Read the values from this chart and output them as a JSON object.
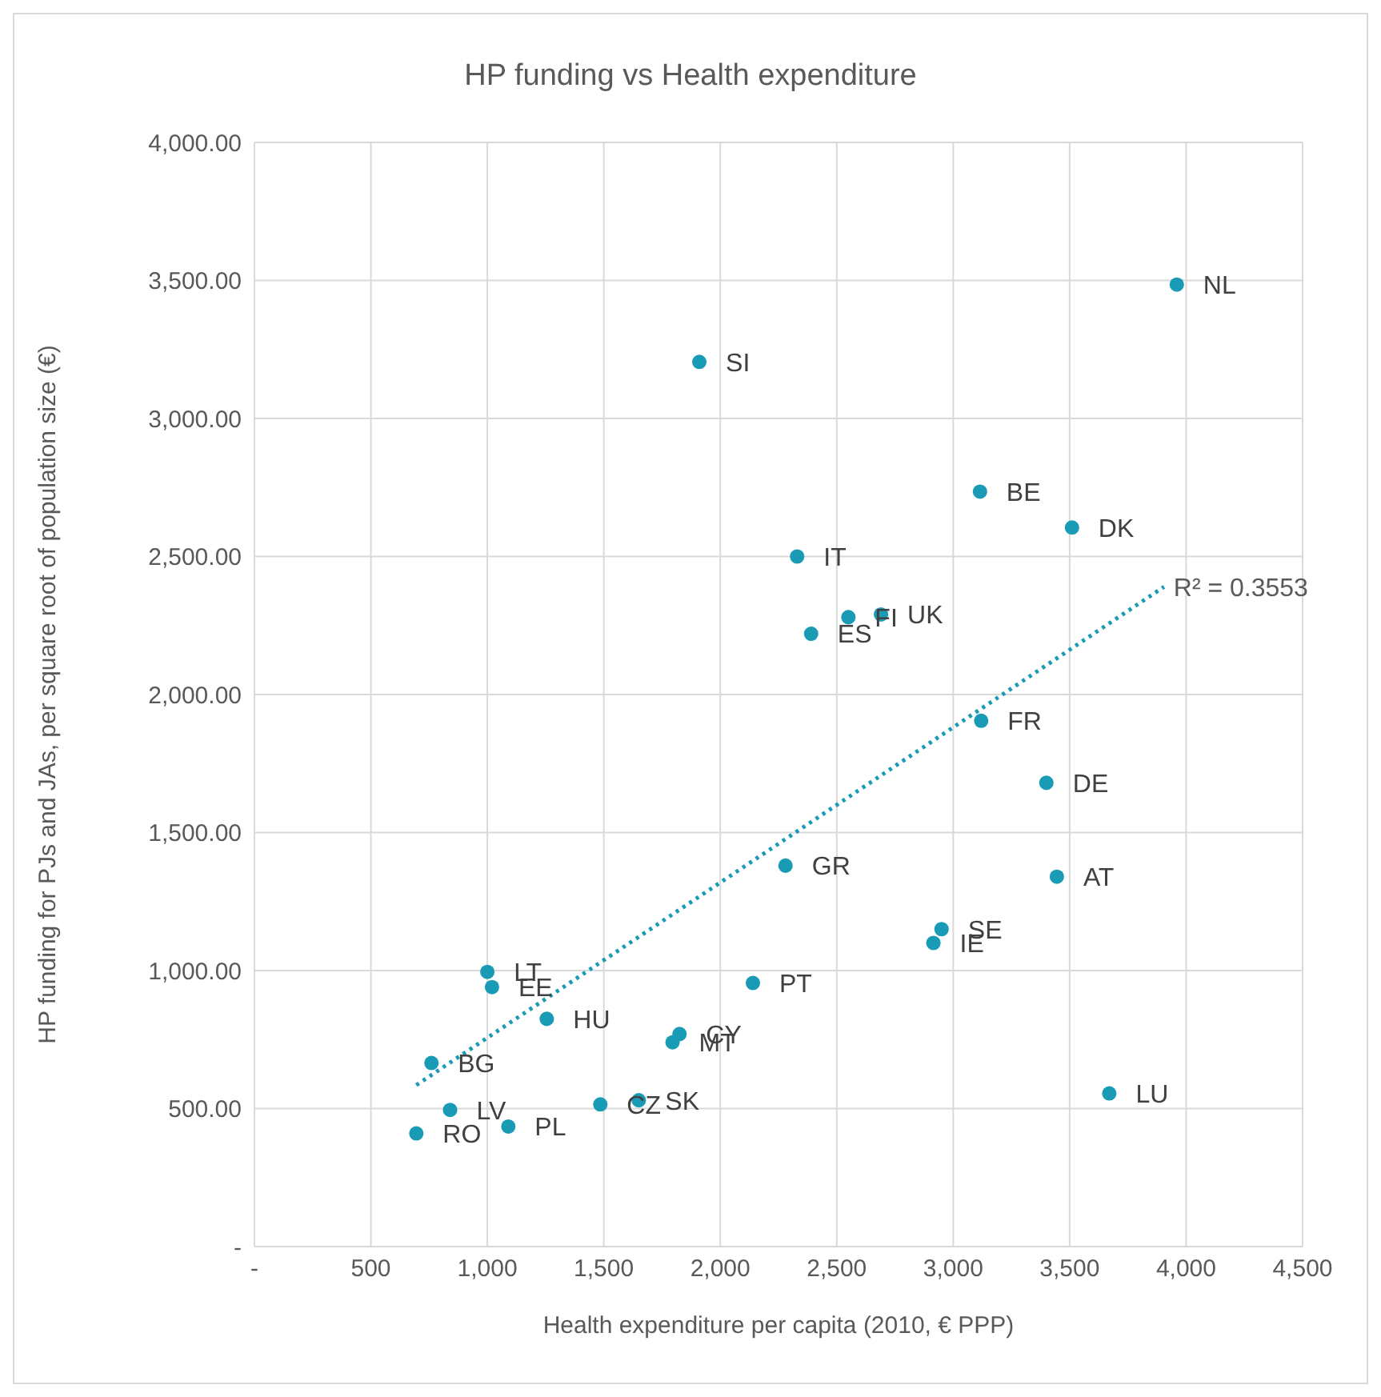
{
  "chart_data": {
    "type": "scatter",
    "title": "HP funding vs Health expenditure",
    "xlabel": "Health expenditure per capita (2010, € PPP)",
    "ylabel": "HP funding for PJs and JAs, per square root of population size (€)",
    "xlim": [
      0,
      4500
    ],
    "xticks": [
      {
        "value": 0,
        "label": "-"
      },
      {
        "value": 500,
        "label": "500"
      },
      {
        "value": 1000,
        "label": "1,000"
      },
      {
        "value": 1500,
        "label": "1,500"
      },
      {
        "value": 2000,
        "label": "2,000"
      },
      {
        "value": 2500,
        "label": "2,500"
      },
      {
        "value": 3000,
        "label": "3,000"
      },
      {
        "value": 3500,
        "label": "3,500"
      },
      {
        "value": 4000,
        "label": "4,000"
      },
      {
        "value": 4500,
        "label": "4,500"
      }
    ],
    "ylim": [
      0,
      4000
    ],
    "yticks": [
      {
        "value": 0,
        "label": "-"
      },
      {
        "value": 500,
        "label": "500.00"
      },
      {
        "value": 1000,
        "label": "1,000.00"
      },
      {
        "value": 1500,
        "label": "1,500.00"
      },
      {
        "value": 2000,
        "label": "2,000.00"
      },
      {
        "value": 2500,
        "label": "2,500.00"
      },
      {
        "value": 3000,
        "label": "3,000.00"
      },
      {
        "value": 3500,
        "label": "3,500.00"
      },
      {
        "value": 4000,
        "label": "4,000.00"
      }
    ],
    "grid": true,
    "marker": "circle",
    "series": [
      {
        "type": "scatter",
        "color": "#1a9bb5",
        "x": [
          3960,
          1910,
          3115,
          3510,
          2330,
          2550,
          2690,
          2390,
          3120,
          3400,
          2280,
          3445,
          2950,
          2915,
          2140,
          1000,
          1020,
          1255,
          1825,
          1795,
          760,
          3670,
          1485,
          1650,
          840,
          1090,
          695
        ],
        "values": [
          3485,
          3205,
          2735,
          2605,
          2500,
          2280,
          2290,
          2220,
          1905,
          1680,
          1380,
          1340,
          1150,
          1100,
          955,
          995,
          940,
          825,
          770,
          740,
          665,
          555,
          515,
          530,
          495,
          435,
          410
        ],
        "value_labels": [
          "NL",
          "SI",
          "BE",
          "DK",
          "IT",
          "FI",
          "UK",
          "ES",
          "FR",
          "DE",
          "GR",
          "AT",
          "SE",
          "IE",
          "PT",
          "LT",
          "EE",
          "HU",
          "CY",
          "MT",
          "BG",
          "LU",
          "CZ",
          "SK",
          "LV",
          "PL",
          "RO"
        ]
      },
      {
        "type": "line",
        "color": "#1a9bb5",
        "line_style": "dotted",
        "marker": "none",
        "x": [
          695,
          3905
        ],
        "values": [
          585,
          2390
        ]
      }
    ],
    "annotations": [
      {
        "text": "R² = 0.3553",
        "x": 3905,
        "y": 2390
      }
    ]
  }
}
